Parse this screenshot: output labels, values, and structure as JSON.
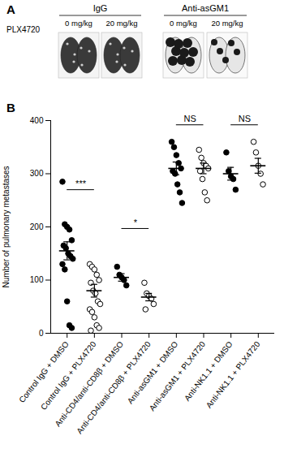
{
  "panel_a": {
    "label": "A",
    "row_label": "PLX4720",
    "groups": [
      {
        "title": "IgG",
        "doses": [
          "0 mg/kg",
          "20 mg/kg"
        ]
      },
      {
        "title": "Anti-asGM1",
        "doses": [
          "0 mg/kg",
          "20 mg/kg"
        ]
      }
    ]
  },
  "chart_data": {
    "type": "scatter",
    "panel_label": "B",
    "y_label": "Number of pulmonary metastases",
    "categories": [
      "Control IgG + DMSO",
      "Control IgG + PLX4720",
      "Anti-CD4/anti-CD8β + DMSO",
      "Anti-CD4/anti-CD8β + PLX4720",
      "Anti-asGM1 + DMSO",
      "Anti-asGM1 + PLX4720",
      "Anti-NK1.1 + DMSO",
      "Anti-NK1.1 + PLX4720"
    ],
    "ylim": [
      0,
      400
    ],
    "yticks": [
      0,
      100,
      200,
      300,
      400
    ],
    "series": [
      {
        "marker": "filled",
        "color": "#000000",
        "values": [
          [
            285,
            205,
            200,
            195,
            175,
            165,
            160,
            150,
            145,
            140,
            130,
            120,
            60,
            15,
            10
          ],
          null,
          [
            125,
            110,
            105,
            100,
            90
          ],
          null,
          [
            360,
            350,
            335,
            320,
            310,
            305,
            300,
            280,
            265,
            245
          ],
          null,
          [
            340,
            305,
            295,
            290,
            270
          ],
          null
        ],
        "mean": [
          155,
          null,
          105,
          null,
          310,
          null,
          300,
          null
        ],
        "sem": [
          17,
          null,
          7,
          null,
          12,
          null,
          12,
          null
        ]
      },
      {
        "marker": "open",
        "color": "#000000",
        "values": [
          null,
          [
            130,
            125,
            120,
            110,
            100,
            95,
            80,
            75,
            60,
            55,
            45,
            40,
            30,
            15,
            10,
            5
          ],
          null,
          [
            95,
            75,
            70,
            65,
            55,
            45
          ],
          null,
          [
            345,
            330,
            320,
            315,
            310,
            305,
            290,
            265,
            250
          ],
          null,
          [
            360,
            340,
            315,
            300,
            280
          ]
        ],
        "mean": [
          null,
          80,
          null,
          68,
          null,
          310,
          null,
          315
        ],
        "sem": [
          null,
          12,
          null,
          7,
          null,
          10,
          null,
          14
        ]
      }
    ],
    "annotations": [
      {
        "text": "***",
        "from": "Control IgG + DMSO",
        "to": "Control IgG + PLX4720",
        "y": 270
      },
      {
        "text": "*",
        "from": "Anti-CD4/anti-CD8β + DMSO",
        "to": "Anti-CD4/anti-CD8β + PLX4720",
        "y": 197
      },
      {
        "text": "NS",
        "from": "Anti-asGM1 + DMSO",
        "to": "Anti-asGM1 + PLX4720",
        "y": 392
      },
      {
        "text": "NS",
        "from": "Anti-NK1.1 + DMSO",
        "to": "Anti-NK1.1 + PLX4720",
        "y": 392
      }
    ]
  }
}
